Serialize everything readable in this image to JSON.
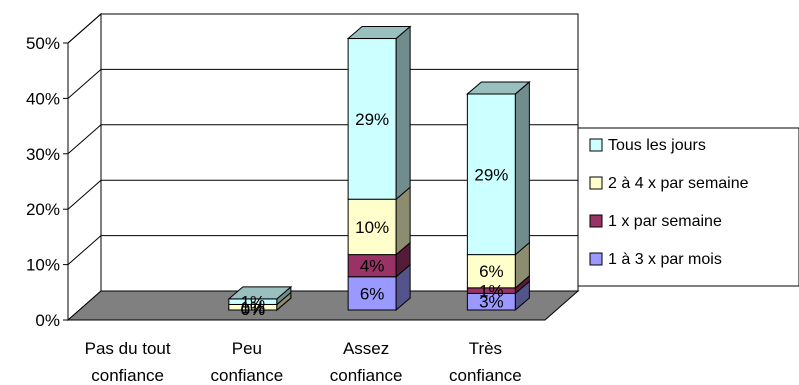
{
  "chart_data": {
    "type": "bar",
    "stacked": true,
    "three_d": true,
    "title": "",
    "xlabel": "",
    "ylabel": "",
    "ylim": [
      0,
      50
    ],
    "y_ticks": [
      "0%",
      "10%",
      "20%",
      "30%",
      "40%",
      "50%"
    ],
    "grid": true,
    "legend_position": "right",
    "categories": [
      [
        "Pas du tout",
        "confiance"
      ],
      [
        "Peu",
        "confiance"
      ],
      [
        "Assez",
        "confiance"
      ],
      [
        "Très",
        "confiance"
      ]
    ],
    "series": [
      {
        "name": "1 à 3 x par mois",
        "color": "#9999ff",
        "values": [
          0,
          0,
          6,
          3
        ],
        "labels": [
          "",
          "0%",
          "6%",
          "3%"
        ]
      },
      {
        "name": "1 x par semaine",
        "color": "#993366",
        "values": [
          0,
          0,
          4,
          1
        ],
        "labels": [
          "",
          "0%",
          "4%",
          "1%"
        ]
      },
      {
        "name": "2 à 4 x par semaine",
        "color": "#ffffcc",
        "values": [
          0,
          1,
          10,
          6
        ],
        "labels": [
          "",
          "1%",
          "10%",
          "6%"
        ]
      },
      {
        "name": "Tous les jours",
        "color": "#ccffff",
        "values": [
          0,
          1,
          29,
          29
        ],
        "labels": [
          "",
          "1%",
          "29%",
          "29%"
        ]
      }
    ],
    "legend_order": [
      "Tous les jours",
      "2 à 4 x par semaine",
      "1 x par semaine",
      "1 à 3 x par mois"
    ]
  }
}
